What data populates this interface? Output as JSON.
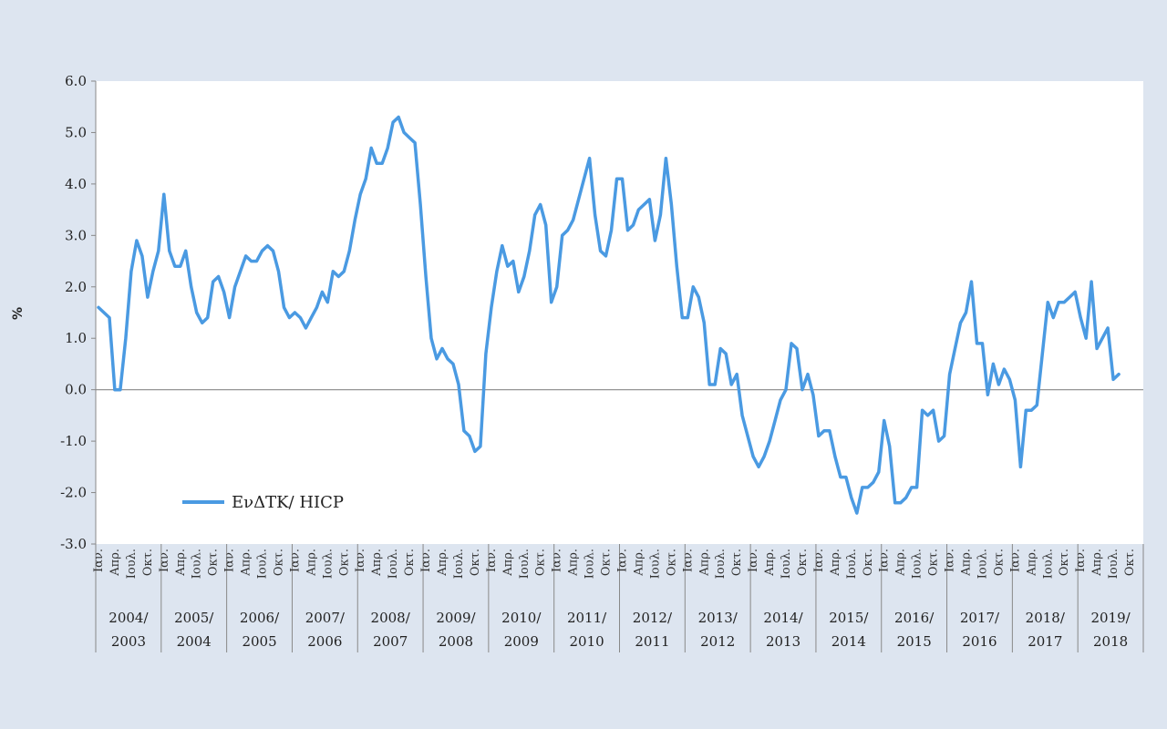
{
  "chart_data": {
    "type": "line",
    "ylabel": "%",
    "ylim": [
      -3.0,
      6.0
    ],
    "yticks": [
      "6.0",
      "5.0",
      "4.0",
      "3.0",
      "2.0",
      "1.0",
      "0.0",
      "-1.0",
      "-2.0",
      "-3.0"
    ],
    "grid": false,
    "legend_position": "bottom-left",
    "month_labels": [
      "Ιαν.",
      "Απρ.",
      "Ιουλ.",
      "Οκτ."
    ],
    "year_groups": [
      {
        "top": "2004/",
        "bottom": "2003"
      },
      {
        "top": "2005/",
        "bottom": "2004"
      },
      {
        "top": "2006/",
        "bottom": "2005"
      },
      {
        "top": "2007/",
        "bottom": "2006"
      },
      {
        "top": "2008/",
        "bottom": "2007"
      },
      {
        "top": "2009/",
        "bottom": "2008"
      },
      {
        "top": "2010/",
        "bottom": "2009"
      },
      {
        "top": "2011/",
        "bottom": "2010"
      },
      {
        "top": "2012/",
        "bottom": "2011"
      },
      {
        "top": "2013/",
        "bottom": "2012"
      },
      {
        "top": "2014/",
        "bottom": "2013"
      },
      {
        "top": "2015/",
        "bottom": "2014"
      },
      {
        "top": "2016/",
        "bottom": "2015"
      },
      {
        "top": "2017/",
        "bottom": "2016"
      },
      {
        "top": "2018/",
        "bottom": "2017"
      },
      {
        "top": "2019/",
        "bottom": "2018"
      }
    ],
    "series": [
      {
        "name": "ΕνΔΤΚ/ HICP",
        "color": "#4a9ae2",
        "values": [
          1.6,
          1.5,
          1.4,
          0.0,
          0.0,
          1.0,
          2.3,
          2.9,
          2.6,
          1.8,
          2.3,
          2.7,
          3.8,
          2.7,
          2.4,
          2.4,
          2.7,
          2.0,
          1.5,
          1.3,
          1.4,
          2.1,
          2.2,
          1.9,
          1.4,
          2.0,
          2.3,
          2.6,
          2.5,
          2.5,
          2.7,
          2.8,
          2.7,
          2.3,
          1.6,
          1.4,
          1.5,
          1.4,
          1.2,
          1.4,
          1.6,
          1.9,
          1.7,
          2.3,
          2.2,
          2.3,
          2.7,
          3.3,
          3.8,
          4.1,
          4.7,
          4.4,
          4.4,
          4.7,
          5.2,
          5.3,
          5.0,
          4.9,
          4.8,
          3.6,
          2.2,
          1.0,
          0.6,
          0.8,
          0.6,
          0.5,
          0.1,
          -0.8,
          -0.9,
          -1.2,
          -1.1,
          0.7,
          1.6,
          2.3,
          2.8,
          2.4,
          2.5,
          1.9,
          2.2,
          2.7,
          3.4,
          3.6,
          3.2,
          1.7,
          2.0,
          3.0,
          3.1,
          3.3,
          3.7,
          4.1,
          4.5,
          3.4,
          2.7,
          2.6,
          3.1,
          4.1,
          4.1,
          3.1,
          3.2,
          3.5,
          3.6,
          3.7,
          2.9,
          3.4,
          4.5,
          3.6,
          2.4,
          1.4,
          1.4,
          2.0,
          1.8,
          1.3,
          0.1,
          0.1,
          0.8,
          0.7,
          0.1,
          0.3,
          -0.5,
          -0.9,
          -1.3,
          -1.5,
          -1.3,
          -1.0,
          -0.6,
          -0.2,
          0.0,
          0.9,
          0.8,
          0.0,
          0.3,
          -0.1,
          -0.9,
          -0.8,
          -0.8,
          -1.3,
          -1.7,
          -1.7,
          -2.1,
          -2.4,
          -1.9,
          -1.9,
          -1.8,
          -1.6,
          -0.6,
          -1.1,
          -2.2,
          -2.2,
          -2.1,
          -1.9,
          -1.9,
          -0.4,
          -0.5,
          -0.4,
          -1.0,
          -0.9,
          0.3,
          0.8,
          1.3,
          1.5,
          2.1,
          0.9,
          0.9,
          -0.1,
          0.5,
          0.1,
          0.4,
          0.2,
          -0.2,
          -1.5,
          -0.4,
          -0.4,
          -0.3,
          0.7,
          1.7,
          1.4,
          1.7,
          1.7,
          1.8,
          1.9,
          1.4,
          1.0,
          2.1,
          0.8,
          1.0,
          1.2,
          0.2,
          0.3
        ]
      }
    ]
  }
}
